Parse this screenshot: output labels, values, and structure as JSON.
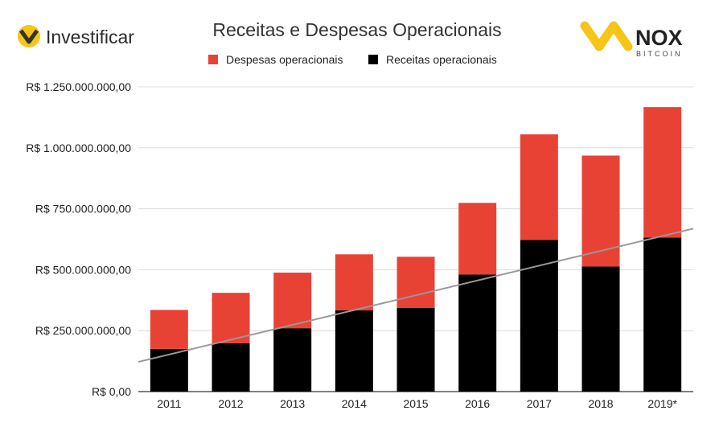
{
  "branding": {
    "left_logo_text": "Investificar",
    "right_logo_text": "NOX",
    "right_logo_subtext": "BITCOIN"
  },
  "colors": {
    "despesas": "#e84235",
    "receitas": "#000000",
    "trendline": "#999999",
    "grid": "#dcdcdc",
    "axis": "#333333",
    "text": "#222222",
    "logo_yellow": "#f5c518",
    "logo_dark": "#333333"
  },
  "chart_data": {
    "type": "bar",
    "stacked": true,
    "title": "Receitas e Despesas Operacionais",
    "categories": [
      "2011",
      "2012",
      "2013",
      "2014",
      "2015",
      "2016",
      "2017",
      "2018",
      "2019*"
    ],
    "series": [
      {
        "name": "Receitas operacionais",
        "color": "#000000",
        "values": [
          175000000,
          198000000,
          260000000,
          333000000,
          343000000,
          480000000,
          622000000,
          513000000,
          632000000
        ]
      },
      {
        "name": "Despesas operacionais",
        "color": "#e84235",
        "values": [
          160000000,
          207000000,
          228000000,
          230000000,
          210000000,
          294000000,
          433000000,
          455000000,
          535000000
        ]
      }
    ],
    "legend": [
      "Despesas operacionais",
      "Receitas operacionais"
    ],
    "legend_position": "top",
    "trendline": {
      "series": "Receitas operacionais",
      "color": "#999999"
    },
    "ylim": [
      0,
      1250000000
    ],
    "y_ticks": [
      0,
      250000000,
      500000000,
      750000000,
      1000000000,
      1250000000
    ],
    "y_tick_labels": [
      "R$ 0,00",
      "R$ 250.000.000,00",
      "R$ 500.000.000,00",
      "R$ 750.000.000,00",
      "R$ 1.000.000.000,00",
      "R$ 1.250.000.000,00"
    ],
    "grid": true
  }
}
